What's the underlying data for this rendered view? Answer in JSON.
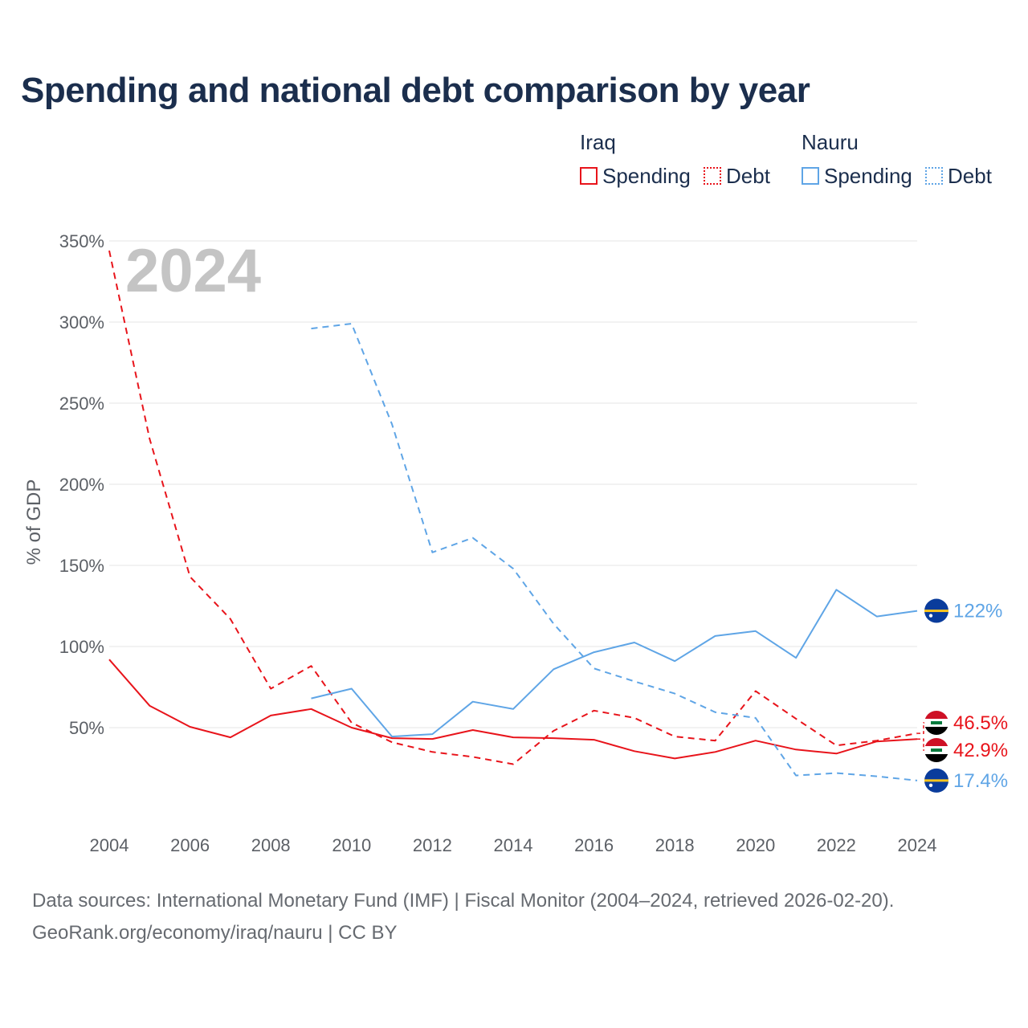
{
  "header": {
    "title": "Spending and national debt comparison by year"
  },
  "legend": {
    "groups": [
      {
        "name": "Iraq",
        "color": "#e8141b",
        "items": [
          {
            "label": "Spending",
            "style": "solid"
          },
          {
            "label": "Debt",
            "style": "dashed"
          }
        ]
      },
      {
        "name": "Nauru",
        "color": "#5fa5e6",
        "items": [
          {
            "label": "Spending",
            "style": "solid"
          },
          {
            "label": "Debt",
            "style": "dashed"
          }
        ]
      }
    ]
  },
  "footer": {
    "line1": "Data sources: International Monetary Fund (IMF) | Fiscal Monitor (2004–2024, retrieved 2026-02-20).",
    "line2": "GeoRank.org/economy/iraq/nauru | CC BY"
  },
  "chart_data": {
    "type": "line",
    "title": "Spending and national debt comparison by year",
    "xlabel": "",
    "ylabel": "% of GDP",
    "year_label": "2024",
    "xlim": [
      2004,
      2024
    ],
    "ylim": [
      0,
      350
    ],
    "x_ticks": [
      "2004",
      "2006",
      "2008",
      "2010",
      "2012",
      "2014",
      "2016",
      "2018",
      "2020",
      "2022",
      "2024"
    ],
    "y_ticks": [
      {
        "value": 50,
        "label": "50%"
      },
      {
        "value": 100,
        "label": "100%"
      },
      {
        "value": 150,
        "label": "150%"
      },
      {
        "value": 200,
        "label": "200%"
      },
      {
        "value": 250,
        "label": "250%"
      },
      {
        "value": 300,
        "label": "300%"
      },
      {
        "value": 350,
        "label": "350%"
      }
    ],
    "series": [
      {
        "name": "Iraq Spending",
        "country": "Iraq",
        "metric": "Spending",
        "color": "#e8141b",
        "style": "solid",
        "x": [
          2004,
          2005,
          2006,
          2007,
          2008,
          2009,
          2010,
          2011,
          2012,
          2013,
          2014,
          2015,
          2016,
          2017,
          2018,
          2019,
          2020,
          2021,
          2022,
          2023,
          2024
        ],
        "values": [
          92,
          63.5,
          50.5,
          44,
          57.5,
          61.5,
          50,
          43.5,
          43,
          48.5,
          44,
          43.5,
          42.5,
          35.5,
          31,
          35,
          42,
          36.5,
          34,
          41.5,
          42.9
        ],
        "end_label": "42.9%",
        "flag": "Iraq"
      },
      {
        "name": "Iraq Debt",
        "country": "Iraq",
        "metric": "Debt",
        "color": "#e8141b",
        "style": "dashed",
        "x": [
          2004,
          2005,
          2006,
          2007,
          2008,
          2009,
          2010,
          2011,
          2012,
          2013,
          2014,
          2015,
          2016,
          2017,
          2018,
          2019,
          2020,
          2021,
          2022,
          2023,
          2024
        ],
        "values": [
          344,
          228,
          143,
          117,
          74,
          88,
          53,
          41,
          35,
          32,
          27.5,
          48,
          60.5,
          56,
          44.5,
          42,
          72.5,
          55.5,
          39,
          42,
          46.5
        ],
        "end_label": "46.5%",
        "flag": "Iraq"
      },
      {
        "name": "Nauru Spending",
        "country": "Nauru",
        "metric": "Spending",
        "color": "#5fa5e6",
        "style": "solid",
        "x": [
          2009,
          2010,
          2011,
          2012,
          2013,
          2014,
          2015,
          2016,
          2017,
          2018,
          2019,
          2020,
          2021,
          2022,
          2023,
          2024
        ],
        "values": [
          68,
          74,
          44.5,
          46,
          66,
          61.5,
          86,
          96.5,
          102.5,
          91,
          106.5,
          109.5,
          93,
          135,
          118.5,
          122
        ],
        "end_label": "122%",
        "flag": "Nauru"
      },
      {
        "name": "Nauru Debt",
        "country": "Nauru",
        "metric": "Debt",
        "color": "#5fa5e6",
        "style": "dashed",
        "x": [
          2009,
          2010,
          2011,
          2012,
          2013,
          2014,
          2015,
          2016,
          2017,
          2018,
          2019,
          2020,
          2021,
          2022,
          2023,
          2024
        ],
        "values": [
          296,
          299,
          237,
          158,
          167,
          148,
          114,
          86.5,
          78.5,
          71,
          59.5,
          56,
          20.5,
          22,
          20,
          17.4
        ],
        "end_label": "17.4%",
        "flag": "Nauru"
      }
    ]
  }
}
